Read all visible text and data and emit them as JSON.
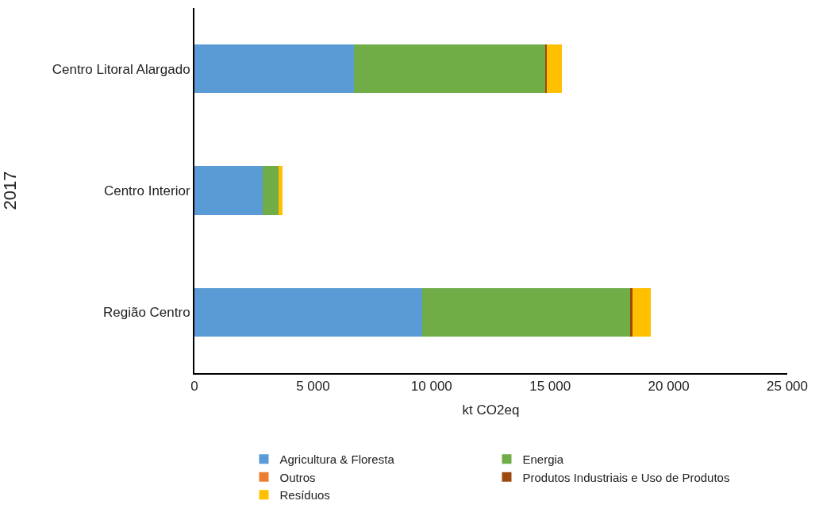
{
  "chart_data": {
    "type": "bar",
    "orientation": "horizontal",
    "stacked": true,
    "ylabel": "2017",
    "xlabel": "kt CO2eq",
    "categories": [
      "Centro Litoral Alargado",
      "Centro Interior",
      "Região Centro"
    ],
    "series": [
      {
        "name": "Agricultura & Floresta",
        "color": "#5b9bd5",
        "values": [
          6720,
          2880,
          9610
        ]
      },
      {
        "name": "Energia",
        "color": "#70ad47",
        "values": [
          8070,
          670,
          8780
        ]
      },
      {
        "name": "Outros",
        "color": "#ed7d31",
        "values": [
          0,
          0,
          0
        ]
      },
      {
        "name": "Produtos Industriais e Uso de Produtos",
        "color": "#9e480e",
        "values": [
          80,
          10,
          80
        ]
      },
      {
        "name": "Resíduos",
        "color": "#ffc000",
        "values": [
          630,
          150,
          760
        ]
      }
    ],
    "xlim": [
      0,
      25000
    ],
    "xticks": [
      {
        "value": 0,
        "label": "0"
      },
      {
        "value": 5000,
        "label": "5 000"
      },
      {
        "value": 10000,
        "label": "10 000"
      },
      {
        "value": 15000,
        "label": "15 000"
      },
      {
        "value": 20000,
        "label": "20 000"
      },
      {
        "value": 25000,
        "label": "25 000"
      }
    ],
    "legend": "bottom"
  }
}
